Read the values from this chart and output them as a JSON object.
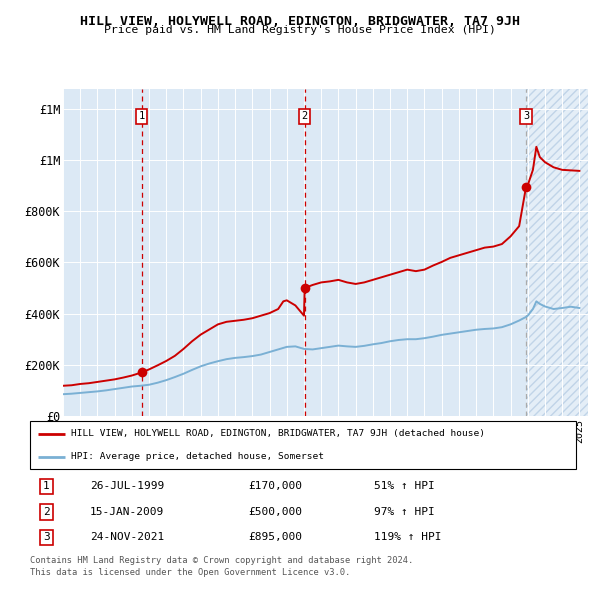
{
  "title": "HILL VIEW, HOLYWELL ROAD, EDINGTON, BRIDGWATER, TA7 9JH",
  "subtitle": "Price paid vs. HM Land Registry's House Price Index (HPI)",
  "red_line_label": "HILL VIEW, HOLYWELL ROAD, EDINGTON, BRIDGWATER, TA7 9JH (detached house)",
  "blue_line_label": "HPI: Average price, detached house, Somerset",
  "transactions": [
    {
      "num": 1,
      "date": "26-JUL-1999",
      "year": 1999.57,
      "price": 170000,
      "pct": "51% ↑ HPI"
    },
    {
      "num": 2,
      "date": "15-JAN-2009",
      "year": 2009.04,
      "price": 500000,
      "pct": "97% ↑ HPI"
    },
    {
      "num": 3,
      "date": "24-NOV-2021",
      "year": 2021.9,
      "price": 895000,
      "pct": "119% ↑ HPI"
    }
  ],
  "footer1": "Contains HM Land Registry data © Crown copyright and database right 2024.",
  "footer2": "This data is licensed under the Open Government Licence v3.0.",
  "bg_color": "#dce9f5",
  "grid_color": "#ffffff",
  "red_color": "#cc0000",
  "blue_color": "#7ab0d4",
  "hatch_color": "#c0d4e8",
  "ylim": [
    0,
    1280000
  ],
  "xlim_start": 1995.0,
  "xlim_end": 2025.5,
  "red_curve": [
    [
      1995.0,
      118000
    ],
    [
      1995.5,
      120000
    ],
    [
      1996.0,
      125000
    ],
    [
      1996.5,
      128000
    ],
    [
      1997.0,
      133000
    ],
    [
      1997.5,
      138000
    ],
    [
      1998.0,
      143000
    ],
    [
      1998.5,
      150000
    ],
    [
      1999.0,
      158000
    ],
    [
      1999.57,
      170000
    ],
    [
      2000.0,
      182000
    ],
    [
      2000.5,
      198000
    ],
    [
      2001.0,
      215000
    ],
    [
      2001.5,
      235000
    ],
    [
      2002.0,
      262000
    ],
    [
      2002.5,
      292000
    ],
    [
      2003.0,
      318000
    ],
    [
      2003.5,
      338000
    ],
    [
      2004.0,
      358000
    ],
    [
      2004.5,
      368000
    ],
    [
      2005.0,
      372000
    ],
    [
      2005.5,
      376000
    ],
    [
      2006.0,
      382000
    ],
    [
      2006.5,
      392000
    ],
    [
      2007.0,
      402000
    ],
    [
      2007.5,
      418000
    ],
    [
      2007.8,
      448000
    ],
    [
      2008.0,
      452000
    ],
    [
      2008.5,
      432000
    ],
    [
      2009.0,
      392000
    ],
    [
      2009.04,
      500000
    ],
    [
      2009.5,
      512000
    ],
    [
      2010.0,
      522000
    ],
    [
      2010.5,
      526000
    ],
    [
      2011.0,
      532000
    ],
    [
      2011.5,
      522000
    ],
    [
      2012.0,
      516000
    ],
    [
      2012.5,
      522000
    ],
    [
      2013.0,
      532000
    ],
    [
      2013.5,
      542000
    ],
    [
      2014.0,
      552000
    ],
    [
      2014.5,
      562000
    ],
    [
      2015.0,
      572000
    ],
    [
      2015.5,
      566000
    ],
    [
      2016.0,
      572000
    ],
    [
      2016.5,
      588000
    ],
    [
      2017.0,
      602000
    ],
    [
      2017.5,
      618000
    ],
    [
      2018.0,
      628000
    ],
    [
      2018.5,
      638000
    ],
    [
      2019.0,
      648000
    ],
    [
      2019.5,
      658000
    ],
    [
      2020.0,
      662000
    ],
    [
      2020.5,
      672000
    ],
    [
      2021.0,
      702000
    ],
    [
      2021.5,
      742000
    ],
    [
      2021.9,
      895000
    ],
    [
      2022.0,
      902000
    ],
    [
      2022.3,
      962000
    ],
    [
      2022.5,
      1052000
    ],
    [
      2022.7,
      1012000
    ],
    [
      2023.0,
      992000
    ],
    [
      2023.5,
      972000
    ],
    [
      2024.0,
      962000
    ],
    [
      2024.5,
      960000
    ],
    [
      2025.0,
      958000
    ]
  ],
  "blue_curve": [
    [
      1995.0,
      85000
    ],
    [
      1995.5,
      87000
    ],
    [
      1996.0,
      90000
    ],
    [
      1996.5,
      93000
    ],
    [
      1997.0,
      96000
    ],
    [
      1997.5,
      100000
    ],
    [
      1998.0,
      105000
    ],
    [
      1998.5,
      110000
    ],
    [
      1999.0,
      115000
    ],
    [
      1999.5,
      118000
    ],
    [
      2000.0,
      122000
    ],
    [
      2000.5,
      130000
    ],
    [
      2001.0,
      140000
    ],
    [
      2001.5,
      152000
    ],
    [
      2002.0,
      165000
    ],
    [
      2002.5,
      180000
    ],
    [
      2003.0,
      194000
    ],
    [
      2003.5,
      205000
    ],
    [
      2004.0,
      214000
    ],
    [
      2004.5,
      222000
    ],
    [
      2005.0,
      227000
    ],
    [
      2005.5,
      230000
    ],
    [
      2006.0,
      234000
    ],
    [
      2006.5,
      240000
    ],
    [
      2007.0,
      250000
    ],
    [
      2007.5,
      260000
    ],
    [
      2008.0,
      270000
    ],
    [
      2008.5,
      272000
    ],
    [
      2009.0,
      262000
    ],
    [
      2009.5,
      260000
    ],
    [
      2010.0,
      265000
    ],
    [
      2010.5,
      270000
    ],
    [
      2011.0,
      275000
    ],
    [
      2011.5,
      272000
    ],
    [
      2012.0,
      270000
    ],
    [
      2012.5,
      274000
    ],
    [
      2013.0,
      280000
    ],
    [
      2013.5,
      285000
    ],
    [
      2014.0,
      292000
    ],
    [
      2014.5,
      297000
    ],
    [
      2015.0,
      300000
    ],
    [
      2015.5,
      300000
    ],
    [
      2016.0,
      304000
    ],
    [
      2016.5,
      310000
    ],
    [
      2017.0,
      317000
    ],
    [
      2017.5,
      322000
    ],
    [
      2018.0,
      327000
    ],
    [
      2018.5,
      332000
    ],
    [
      2019.0,
      337000
    ],
    [
      2019.5,
      340000
    ],
    [
      2020.0,
      342000
    ],
    [
      2020.5,
      347000
    ],
    [
      2021.0,
      358000
    ],
    [
      2021.5,
      373000
    ],
    [
      2021.9,
      387000
    ],
    [
      2022.0,
      392000
    ],
    [
      2022.3,
      418000
    ],
    [
      2022.5,
      448000
    ],
    [
      2022.7,
      438000
    ],
    [
      2023.0,
      428000
    ],
    [
      2023.5,
      418000
    ],
    [
      2024.0,
      422000
    ],
    [
      2024.5,
      427000
    ],
    [
      2025.0,
      422000
    ]
  ]
}
